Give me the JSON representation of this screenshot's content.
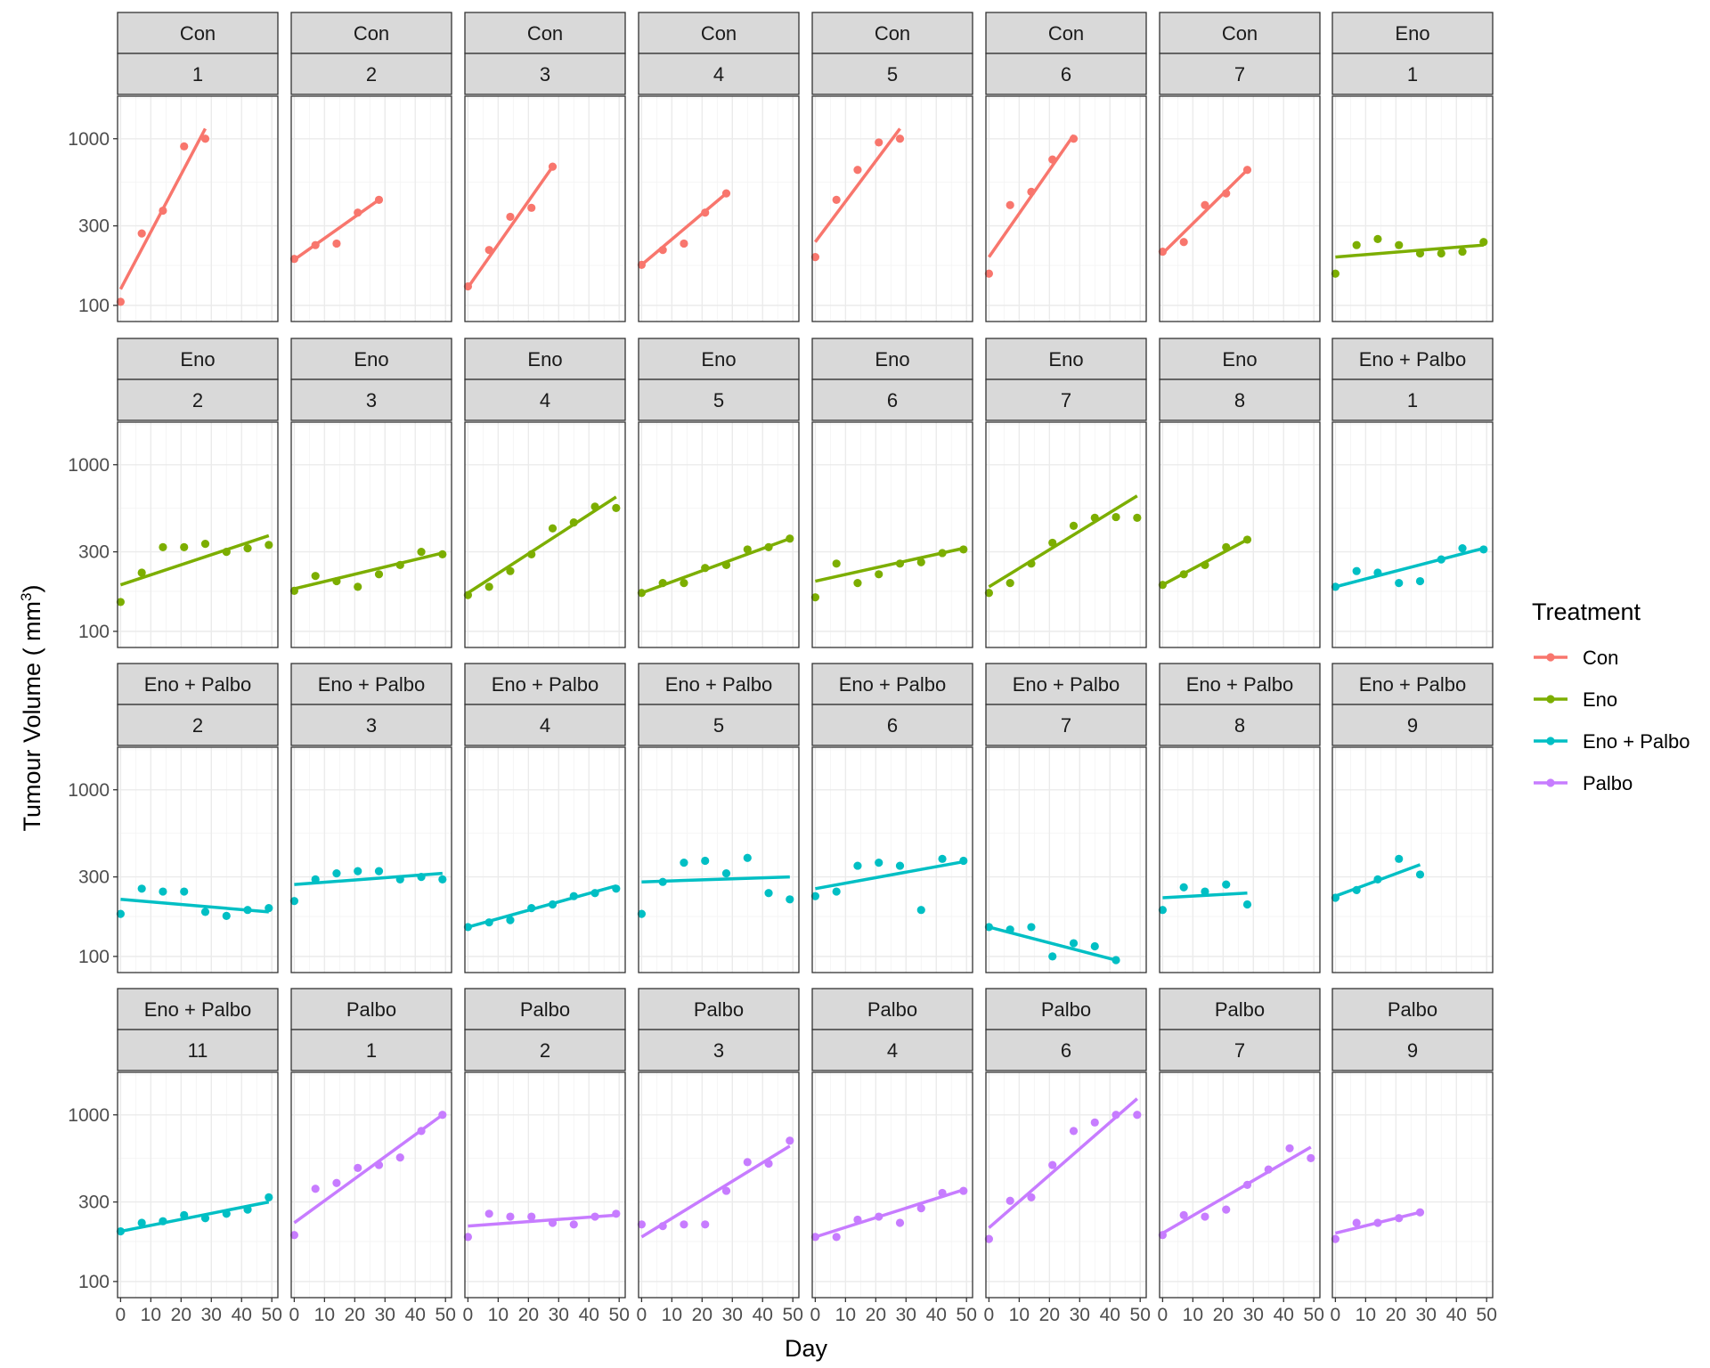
{
  "chart_data": {
    "type": "scatter",
    "subtype": "faceted scatter with linear fit per panel",
    "xlabel": "Day",
    "ylabel": "Tumour Volume ( mm",
    "ylabel_superscript": "3",
    "ylabel_close": ")",
    "y_scale": "log10",
    "xlim": [
      -1,
      52
    ],
    "ylim": [
      80,
      1800
    ],
    "x_ticks": [
      0,
      10,
      20,
      30,
      40,
      50
    ],
    "x_tick_labels": [
      "0",
      "10",
      "20",
      "30",
      "40",
      "50"
    ],
    "y_ticks": [
      100,
      300,
      1000
    ],
    "y_tick_labels": [
      "100",
      "300",
      "1000"
    ],
    "grid": true,
    "legend": {
      "title": "Treatment",
      "position": "right",
      "items": [
        {
          "label": "Con",
          "color": "#F8766D"
        },
        {
          "label": "Eno",
          "color": "#7CAE00"
        },
        {
          "label": "Eno + Palbo",
          "color": "#00BFC4"
        },
        {
          "label": "Palbo",
          "color": "#C77CFF"
        }
      ]
    },
    "panels": [
      {
        "treatment": "Con",
        "id": "1",
        "x": [
          0,
          7,
          14,
          21,
          28
        ],
        "y": [
          105,
          270,
          370,
          900,
          1000
        ],
        "fit": [
          [
            0,
            125
          ],
          [
            28,
            1150
          ]
        ]
      },
      {
        "treatment": "Con",
        "id": "2",
        "x": [
          0,
          7,
          14,
          21,
          28
        ],
        "y": [
          190,
          230,
          235,
          360,
          430
        ],
        "fit": [
          [
            0,
            188
          ],
          [
            28,
            430
          ]
        ]
      },
      {
        "treatment": "Con",
        "id": "3",
        "x": [
          0,
          7,
          14,
          21,
          28
        ],
        "y": [
          130,
          215,
          340,
          385,
          680
        ],
        "fit": [
          [
            0,
            128
          ],
          [
            28,
            680
          ]
        ]
      },
      {
        "treatment": "Con",
        "id": "4",
        "x": [
          0,
          7,
          14,
          21,
          28
        ],
        "y": [
          175,
          215,
          235,
          360,
          470
        ],
        "fit": [
          [
            0,
            175
          ],
          [
            28,
            470
          ]
        ]
      },
      {
        "treatment": "Con",
        "id": "5",
        "x": [
          0,
          7,
          14,
          21,
          28
        ],
        "y": [
          195,
          430,
          650,
          950,
          1000
        ],
        "fit": [
          [
            0,
            240
          ],
          [
            28,
            1150
          ]
        ]
      },
      {
        "treatment": "Con",
        "id": "6",
        "x": [
          0,
          7,
          14,
          21,
          28
        ],
        "y": [
          155,
          400,
          480,
          750,
          1000
        ],
        "fit": [
          [
            0,
            195
          ],
          [
            28,
            1050
          ]
        ]
      },
      {
        "treatment": "Con",
        "id": "7",
        "x": [
          0,
          7,
          14,
          21,
          28
        ],
        "y": [
          210,
          240,
          400,
          470,
          650
        ],
        "fit": [
          [
            0,
            205
          ],
          [
            28,
            650
          ]
        ]
      },
      {
        "treatment": "Eno",
        "id": "1",
        "x": [
          0,
          7,
          14,
          21,
          28,
          35,
          42,
          49
        ],
        "y": [
          155,
          230,
          250,
          230,
          205,
          205,
          210,
          240
        ],
        "fit": [
          [
            0,
            195
          ],
          [
            49,
            230
          ]
        ]
      },
      {
        "treatment": "Eno",
        "id": "2",
        "x": [
          0,
          7,
          14,
          21,
          28,
          35,
          42,
          49
        ],
        "y": [
          150,
          225,
          320,
          320,
          335,
          300,
          315,
          330
        ],
        "fit": [
          [
            0,
            190
          ],
          [
            49,
            375
          ]
        ]
      },
      {
        "treatment": "Eno",
        "id": "3",
        "x": [
          0,
          7,
          14,
          21,
          28,
          35,
          42,
          49
        ],
        "y": [
          175,
          215,
          200,
          185,
          220,
          250,
          300,
          290
        ],
        "fit": [
          [
            0,
            180
          ],
          [
            49,
            295
          ]
        ]
      },
      {
        "treatment": "Eno",
        "id": "4",
        "x": [
          0,
          7,
          14,
          21,
          28,
          35,
          42,
          49
        ],
        "y": [
          165,
          185,
          230,
          290,
          415,
          450,
          560,
          550
        ],
        "fit": [
          [
            0,
            170
          ],
          [
            49,
            640
          ]
        ]
      },
      {
        "treatment": "Eno",
        "id": "5",
        "x": [
          0,
          7,
          14,
          21,
          28,
          35,
          42,
          49
        ],
        "y": [
          170,
          195,
          195,
          240,
          250,
          310,
          320,
          360
        ],
        "fit": [
          [
            0,
            170
          ],
          [
            49,
            360
          ]
        ]
      },
      {
        "treatment": "Eno",
        "id": "6",
        "x": [
          0,
          7,
          14,
          21,
          28,
          35,
          42,
          49
        ],
        "y": [
          160,
          255,
          195,
          220,
          255,
          260,
          295,
          310
        ],
        "fit": [
          [
            0,
            200
          ],
          [
            49,
            315
          ]
        ]
      },
      {
        "treatment": "Eno",
        "id": "7",
        "x": [
          0,
          7,
          14,
          21,
          28,
          35,
          42,
          49
        ],
        "y": [
          170,
          195,
          255,
          340,
          430,
          480,
          485,
          480
        ],
        "fit": [
          [
            0,
            185
          ],
          [
            49,
            650
          ]
        ]
      },
      {
        "treatment": "Eno",
        "id": "8",
        "x": [
          0,
          7,
          14,
          21,
          28
        ],
        "y": [
          190,
          220,
          250,
          320,
          355
        ],
        "fit": [
          [
            0,
            190
          ],
          [
            28,
            355
          ]
        ]
      },
      {
        "treatment": "Eno + Palbo",
        "id": "1",
        "x": [
          0,
          7,
          14,
          21,
          28,
          35,
          42,
          49
        ],
        "y": [
          185,
          230,
          225,
          195,
          200,
          270,
          315,
          310
        ],
        "fit": [
          [
            0,
            185
          ],
          [
            49,
            315
          ]
        ]
      },
      {
        "treatment": "Eno + Palbo",
        "id": "2",
        "x": [
          0,
          7,
          14,
          21,
          28,
          35,
          42,
          49
        ],
        "y": [
          180,
          255,
          245,
          245,
          185,
          175,
          190,
          195
        ],
        "fit": [
          [
            0,
            220
          ],
          [
            49,
            185
          ]
        ]
      },
      {
        "treatment": "Eno + Palbo",
        "id": "3",
        "x": [
          0,
          7,
          14,
          21,
          28,
          35,
          42,
          49
        ],
        "y": [
          215,
          290,
          315,
          325,
          325,
          290,
          300,
          290
        ],
        "fit": [
          [
            0,
            270
          ],
          [
            49,
            315
          ]
        ]
      },
      {
        "treatment": "Eno + Palbo",
        "id": "4",
        "x": [
          0,
          7,
          14,
          21,
          28,
          35,
          42,
          49
        ],
        "y": [
          150,
          160,
          165,
          195,
          205,
          230,
          240,
          255
        ],
        "fit": [
          [
            0,
            150
          ],
          [
            49,
            265
          ]
        ]
      },
      {
        "treatment": "Eno + Palbo",
        "id": "5",
        "x": [
          0,
          7,
          14,
          21,
          28,
          35,
          42,
          49
        ],
        "y": [
          180,
          280,
          365,
          375,
          315,
          390,
          240,
          220
        ],
        "fit": [
          [
            0,
            280
          ],
          [
            49,
            300
          ]
        ]
      },
      {
        "treatment": "Eno + Palbo",
        "id": "6",
        "x": [
          0,
          7,
          14,
          21,
          28,
          35,
          42,
          49
        ],
        "y": [
          230,
          245,
          350,
          365,
          350,
          190,
          385,
          375
        ],
        "fit": [
          [
            0,
            255
          ],
          [
            49,
            370
          ]
        ]
      },
      {
        "treatment": "Eno + Palbo",
        "id": "7",
        "x": [
          0,
          7,
          14,
          21,
          28,
          35,
          42
        ],
        "y": [
          150,
          145,
          150,
          100,
          120,
          115,
          95
        ],
        "fit": [
          [
            0,
            150
          ],
          [
            42,
            95
          ]
        ]
      },
      {
        "treatment": "Eno + Palbo",
        "id": "8",
        "x": [
          0,
          7,
          14,
          21,
          28
        ],
        "y": [
          190,
          260,
          245,
          270,
          205
        ],
        "fit": [
          [
            0,
            225
          ],
          [
            28,
            240
          ]
        ]
      },
      {
        "treatment": "Eno + Palbo",
        "id": "9",
        "x": [
          0,
          7,
          14,
          21,
          28
        ],
        "y": [
          225,
          250,
          290,
          385,
          310
        ],
        "fit": [
          [
            0,
            230
          ],
          [
            28,
            355
          ]
        ]
      },
      {
        "treatment": "Eno + Palbo",
        "id": "11",
        "x": [
          0,
          7,
          14,
          21,
          28,
          35,
          42,
          49
        ],
        "y": [
          200,
          225,
          230,
          250,
          240,
          255,
          270,
          320
        ],
        "fit": [
          [
            0,
            200
          ],
          [
            49,
            300
          ]
        ]
      },
      {
        "treatment": "Palbo",
        "id": "1",
        "x": [
          0,
          7,
          14,
          21,
          28,
          35,
          42,
          49
        ],
        "y": [
          190,
          360,
          390,
          480,
          500,
          555,
          800,
          1000
        ],
        "fit": [
          [
            0,
            225
          ],
          [
            49,
            1000
          ]
        ]
      },
      {
        "treatment": "Palbo",
        "id": "2",
        "x": [
          0,
          7,
          14,
          21,
          28,
          35,
          42,
          49
        ],
        "y": [
          185,
          255,
          245,
          245,
          225,
          220,
          245,
          255
        ],
        "fit": [
          [
            0,
            215
          ],
          [
            49,
            250
          ]
        ]
      },
      {
        "treatment": "Palbo",
        "id": "3",
        "x": [
          0,
          7,
          14,
          21,
          28,
          35,
          42,
          49
        ],
        "y": [
          220,
          215,
          220,
          220,
          350,
          520,
          510,
          700
        ],
        "fit": [
          [
            0,
            185
          ],
          [
            49,
            650
          ]
        ]
      },
      {
        "treatment": "Palbo",
        "id": "4",
        "x": [
          0,
          7,
          14,
          21,
          28,
          35,
          42,
          49
        ],
        "y": [
          185,
          185,
          235,
          245,
          225,
          275,
          340,
          350
        ],
        "fit": [
          [
            0,
            185
          ],
          [
            49,
            355
          ]
        ]
      },
      {
        "treatment": "Palbo",
        "id": "6",
        "x": [
          0,
          7,
          14,
          21,
          28,
          35,
          42,
          49
        ],
        "y": [
          180,
          305,
          320,
          500,
          800,
          900,
          1000,
          1000
        ],
        "fit": [
          [
            0,
            210
          ],
          [
            49,
            1250
          ]
        ]
      },
      {
        "treatment": "Palbo",
        "id": "7",
        "x": [
          0,
          7,
          14,
          21,
          28,
          35,
          42,
          49
        ],
        "y": [
          190,
          250,
          245,
          270,
          380,
          470,
          630,
          550
        ],
        "fit": [
          [
            0,
            195
          ],
          [
            49,
            640
          ]
        ]
      },
      {
        "treatment": "Palbo",
        "id": "9",
        "x": [
          0,
          7,
          14,
          21,
          28
        ],
        "y": [
          180,
          225,
          225,
          240,
          260
        ],
        "fit": [
          [
            0,
            195
          ],
          [
            28,
            260
          ]
        ]
      }
    ]
  }
}
